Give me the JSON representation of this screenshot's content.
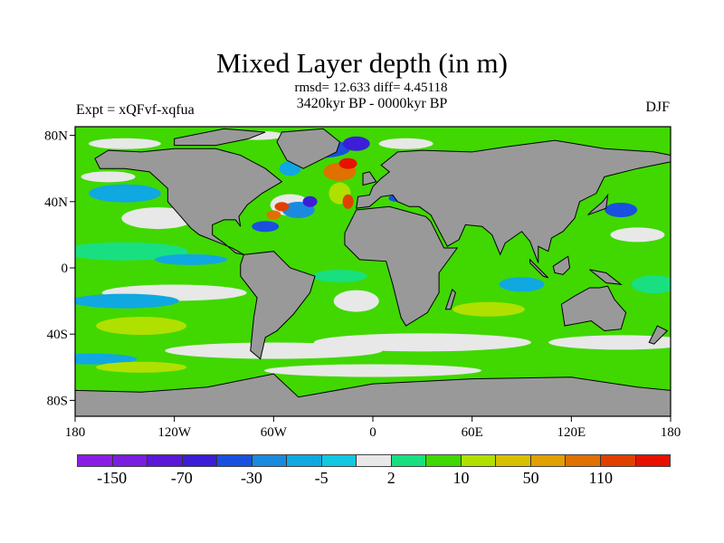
{
  "title": "Mixed Layer depth (in m)",
  "stats": "rmsd= 12.633 diff= 4.45118",
  "period": "3420kyr BP - 0000kyr BP",
  "experiment": "Expt = xQFvf-xqfua",
  "season": "DJF",
  "axes": {
    "lat_ticks": [
      {
        "label": "80N",
        "lat": 80
      },
      {
        "label": "40N",
        "lat": 40
      },
      {
        "label": "0",
        "lat": 0
      },
      {
        "label": "40S",
        "lat": -40
      },
      {
        "label": "80S",
        "lat": -80
      }
    ],
    "lon_ticks": [
      {
        "label": "180",
        "lon": -180
      },
      {
        "label": "120W",
        "lon": -120
      },
      {
        "label": "60W",
        "lon": -60
      },
      {
        "label": "0",
        "lon": 0
      },
      {
        "label": "60E",
        "lon": 60
      },
      {
        "label": "120E",
        "lon": 120
      },
      {
        "label": "180",
        "lon": 180
      }
    ]
  },
  "colorbar": {
    "colors": [
      "#8a1ee6",
      "#7a1ee0",
      "#5a18d8",
      "#3c1ed8",
      "#1a50e0",
      "#1a8ae0",
      "#10a8e0",
      "#10c8e0",
      "#e8e8e8",
      "#18e080",
      "#40d800",
      "#b0e000",
      "#d8c000",
      "#e0a000",
      "#e07000",
      "#e04000",
      "#e81000"
    ],
    "labels": [
      {
        "text": "-150",
        "boundary": 1
      },
      {
        "text": "-70",
        "boundary": 3
      },
      {
        "text": "-30",
        "boundary": 5
      },
      {
        "text": "-5",
        "boundary": 7
      },
      {
        "text": "2",
        "boundary": 9
      },
      {
        "text": "10",
        "boundary": 11
      },
      {
        "text": "50",
        "boundary": 13
      },
      {
        "text": "110",
        "boundary": 15
      }
    ]
  },
  "land_color": "#999999"
}
